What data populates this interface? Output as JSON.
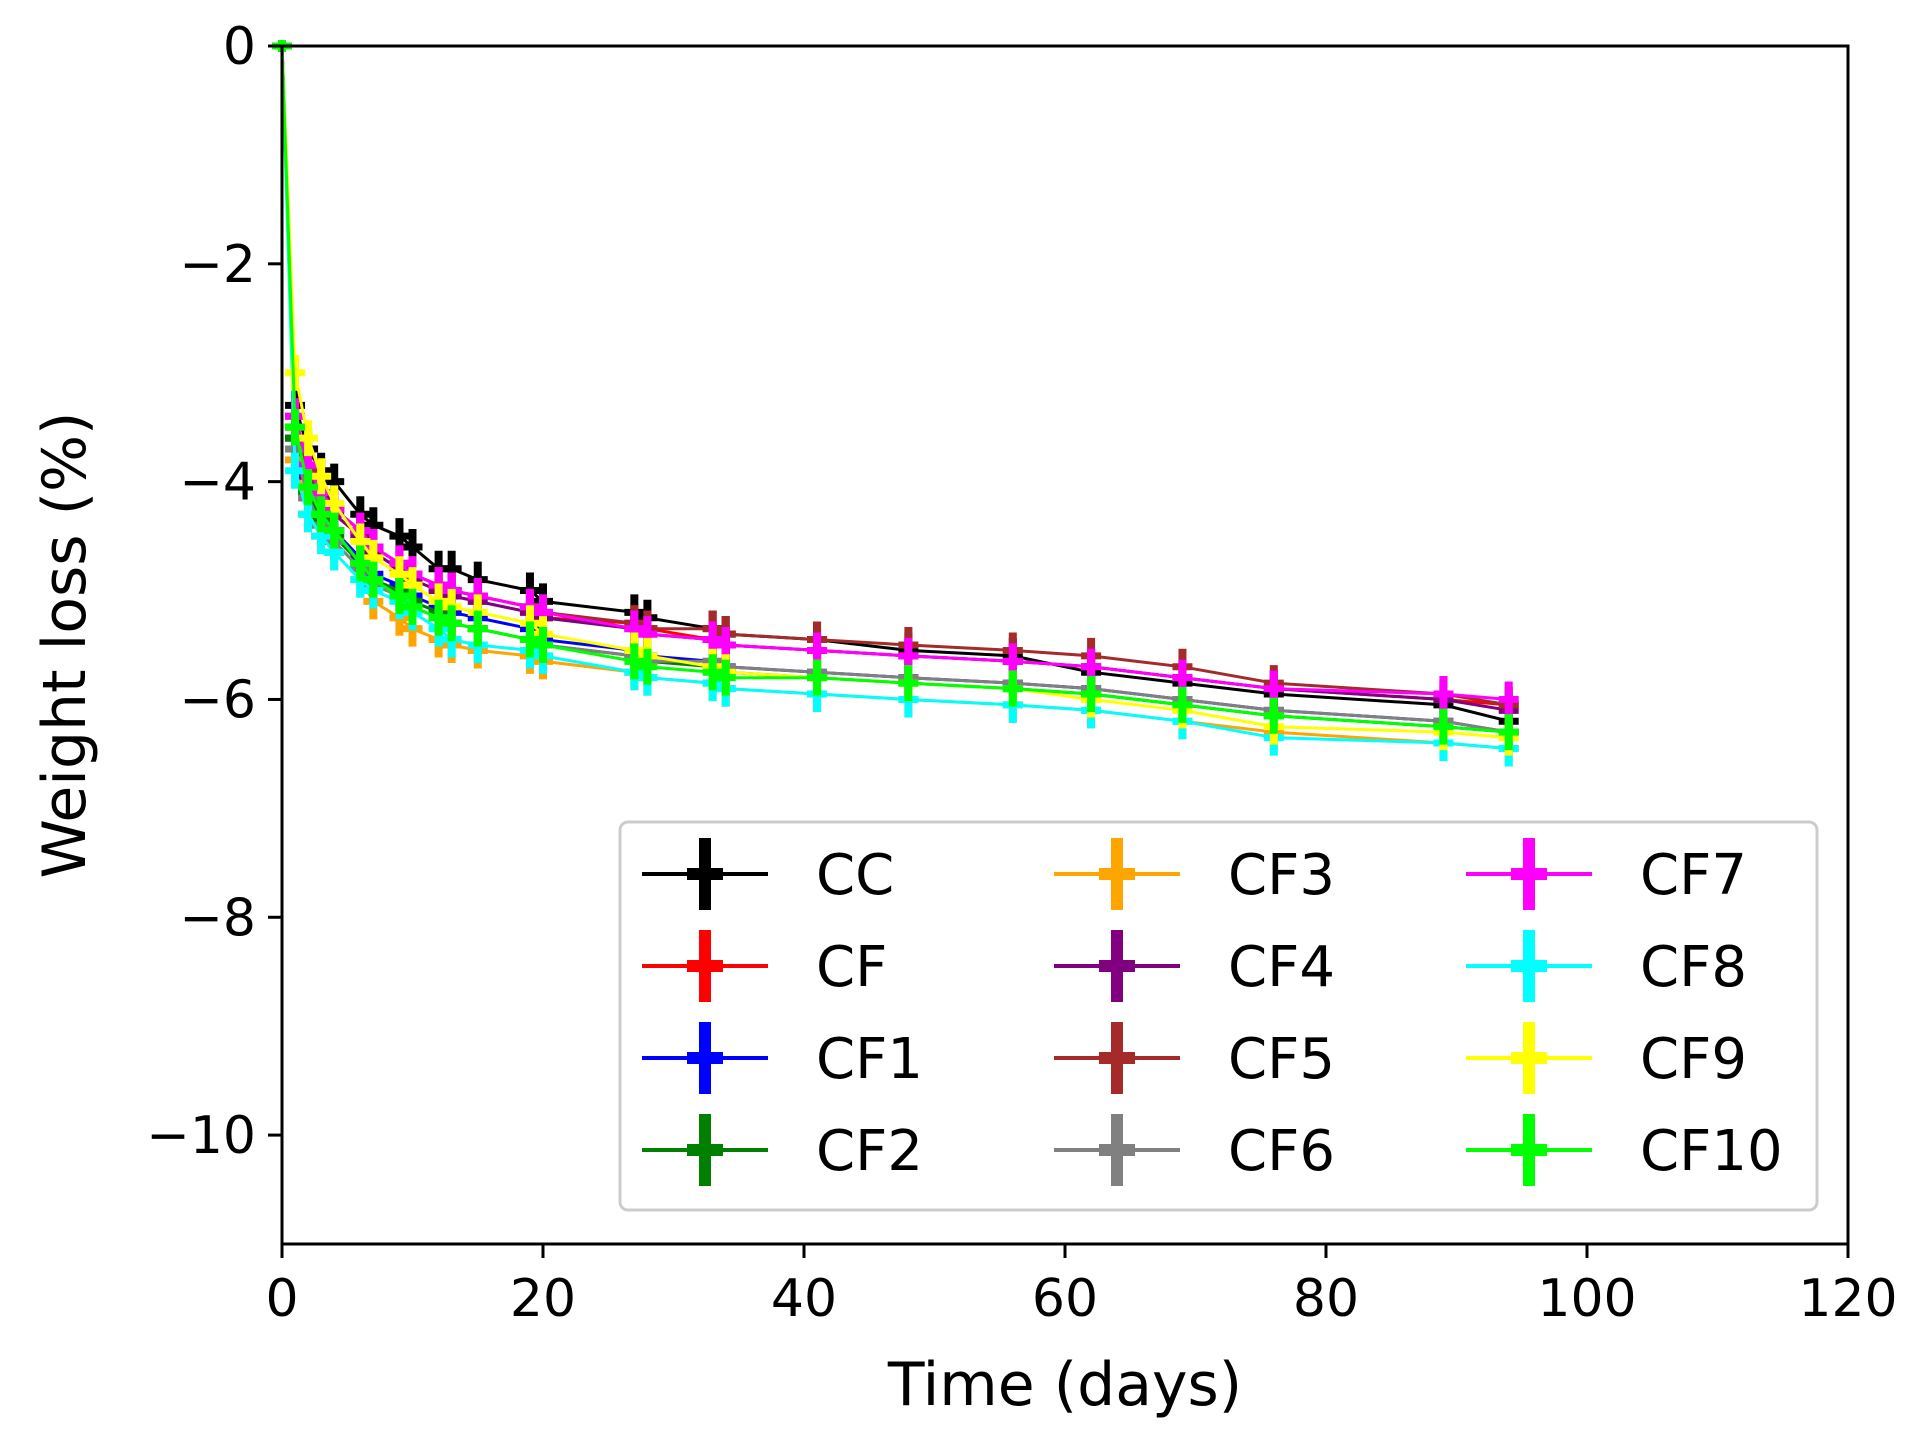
{
  "chart_data": {
    "type": "line",
    "title": "",
    "xlabel": "Time (days)",
    "ylabel": "Weight loss (%)",
    "xlim": [
      0,
      120
    ],
    "ylim": [
      -11,
      0
    ],
    "xticks": [
      0,
      20,
      40,
      60,
      80,
      100,
      120
    ],
    "xtick_labels": [
      "0",
      "20",
      "40",
      "60",
      "80",
      "100",
      "120"
    ],
    "yticks": [
      0,
      -2,
      -4,
      -6,
      -8,
      -10
    ],
    "ytick_labels": [
      "0",
      "−2",
      "−4",
      "−6",
      "−8",
      "−10"
    ],
    "grid": false,
    "legend": {
      "location": "lower-right",
      "columns": 3
    },
    "x": [
      0,
      1,
      2,
      3,
      4,
      6,
      7,
      9,
      10,
      12,
      13,
      15,
      19,
      20,
      27,
      28,
      33,
      34,
      41,
      48,
      56,
      62,
      69,
      76,
      89,
      94
    ],
    "series": [
      {
        "name": "CC",
        "color": "#000000",
        "values": [
          0,
          -3.3,
          -3.7,
          -3.9,
          -4.0,
          -4.3,
          -4.4,
          -4.5,
          -4.6,
          -4.8,
          -4.8,
          -4.9,
          -5.0,
          -5.1,
          -5.2,
          -5.25,
          -5.35,
          -5.4,
          -5.45,
          -5.55,
          -5.6,
          -5.75,
          -5.85,
          -5.95,
          -6.05,
          -6.2
        ]
      },
      {
        "name": "CF",
        "color": "#ff0000",
        "values": [
          0,
          -3.4,
          -3.85,
          -4.1,
          -4.25,
          -4.45,
          -4.6,
          -4.75,
          -4.85,
          -4.95,
          -5.0,
          -5.05,
          -5.15,
          -5.25,
          -5.3,
          -5.35,
          -5.45,
          -5.5,
          -5.55,
          -5.6,
          -5.65,
          -5.7,
          -5.8,
          -5.9,
          -6.0,
          -6.05
        ]
      },
      {
        "name": "CF1",
        "color": "#0000ff",
        "values": [
          0,
          -3.6,
          -4.05,
          -4.3,
          -4.45,
          -4.7,
          -4.85,
          -4.95,
          -5.05,
          -5.15,
          -5.2,
          -5.25,
          -5.35,
          -5.45,
          -5.55,
          -5.6,
          -5.65,
          -5.7,
          -5.75,
          -5.8,
          -5.85,
          -5.9,
          -6.0,
          -6.1,
          -6.2,
          -6.3
        ]
      },
      {
        "name": "CF2",
        "color": "#007f00",
        "values": [
          0,
          -3.6,
          -4.1,
          -4.35,
          -4.5,
          -4.75,
          -4.9,
          -5.0,
          -5.1,
          -5.2,
          -5.3,
          -5.35,
          -5.45,
          -5.5,
          -5.6,
          -5.65,
          -5.7,
          -5.75,
          -5.8,
          -5.85,
          -5.9,
          -5.95,
          -6.05,
          -6.15,
          -6.25,
          -6.3
        ]
      },
      {
        "name": "CF3",
        "color": "#ffa500",
        "values": [
          0,
          -3.8,
          -4.3,
          -4.5,
          -4.65,
          -4.9,
          -5.1,
          -5.25,
          -5.35,
          -5.45,
          -5.5,
          -5.55,
          -5.6,
          -5.65,
          -5.75,
          -5.8,
          -5.85,
          -5.9,
          -5.95,
          -6.0,
          -6.05,
          -6.1,
          -6.2,
          -6.3,
          -6.4,
          -6.45
        ]
      },
      {
        "name": "CF4",
        "color": "#800080",
        "values": [
          0,
          -3.5,
          -3.95,
          -4.15,
          -4.3,
          -4.5,
          -4.65,
          -4.8,
          -4.9,
          -5.0,
          -5.05,
          -5.1,
          -5.2,
          -5.25,
          -5.35,
          -5.4,
          -5.45,
          -5.5,
          -5.55,
          -5.6,
          -5.65,
          -5.7,
          -5.8,
          -5.9,
          -6.0,
          -6.1
        ]
      },
      {
        "name": "CF5",
        "color": "#a52a2a",
        "values": [
          0,
          -3.5,
          -3.9,
          -4.1,
          -4.25,
          -4.45,
          -4.6,
          -4.75,
          -4.85,
          -4.95,
          -5.0,
          -5.05,
          -5.15,
          -5.2,
          -5.3,
          -5.35,
          -5.35,
          -5.4,
          -5.45,
          -5.5,
          -5.55,
          -5.6,
          -5.7,
          -5.85,
          -5.95,
          -6.05
        ]
      },
      {
        "name": "CF6",
        "color": "#808080",
        "values": [
          0,
          -3.7,
          -4.15,
          -4.4,
          -4.55,
          -4.8,
          -4.95,
          -5.05,
          -5.15,
          -5.25,
          -5.3,
          -5.35,
          -5.45,
          -5.5,
          -5.6,
          -5.65,
          -5.65,
          -5.7,
          -5.75,
          -5.8,
          -5.85,
          -5.9,
          -6.0,
          -6.1,
          -6.2,
          -6.3
        ]
      },
      {
        "name": "CF7",
        "color": "#ff00ff",
        "values": [
          0,
          -3.4,
          -3.85,
          -4.1,
          -4.25,
          -4.45,
          -4.6,
          -4.75,
          -4.85,
          -4.95,
          -5.0,
          -5.05,
          -5.15,
          -5.2,
          -5.35,
          -5.4,
          -5.45,
          -5.5,
          -5.55,
          -5.6,
          -5.65,
          -5.7,
          -5.8,
          -5.9,
          -5.95,
          -6.0
        ]
      },
      {
        "name": "CF8",
        "color": "#00ffff",
        "values": [
          0,
          -3.9,
          -4.3,
          -4.5,
          -4.65,
          -4.9,
          -5.0,
          -5.1,
          -5.2,
          -5.35,
          -5.45,
          -5.5,
          -5.55,
          -5.6,
          -5.75,
          -5.8,
          -5.85,
          -5.9,
          -5.95,
          -6.0,
          -6.05,
          -6.1,
          -6.2,
          -6.35,
          -6.4,
          -6.45
        ]
      },
      {
        "name": "CF9",
        "color": "#ffff00",
        "values": [
          0,
          -3.0,
          -3.6,
          -3.95,
          -4.2,
          -4.55,
          -4.7,
          -4.85,
          -4.95,
          -5.1,
          -5.15,
          -5.2,
          -5.3,
          -5.4,
          -5.55,
          -5.6,
          -5.7,
          -5.75,
          -5.8,
          -5.85,
          -5.9,
          -6.0,
          -6.1,
          -6.25,
          -6.3,
          -6.35
        ]
      },
      {
        "name": "CF10",
        "color": "#00ff00",
        "values": [
          0,
          -3.5,
          -4.05,
          -4.3,
          -4.45,
          -4.75,
          -4.9,
          -5.05,
          -5.15,
          -5.25,
          -5.3,
          -5.35,
          -5.45,
          -5.5,
          -5.65,
          -5.7,
          -5.75,
          -5.8,
          -5.8,
          -5.85,
          -5.9,
          -5.95,
          -6.05,
          -6.15,
          -6.25,
          -6.3
        ]
      }
    ]
  }
}
